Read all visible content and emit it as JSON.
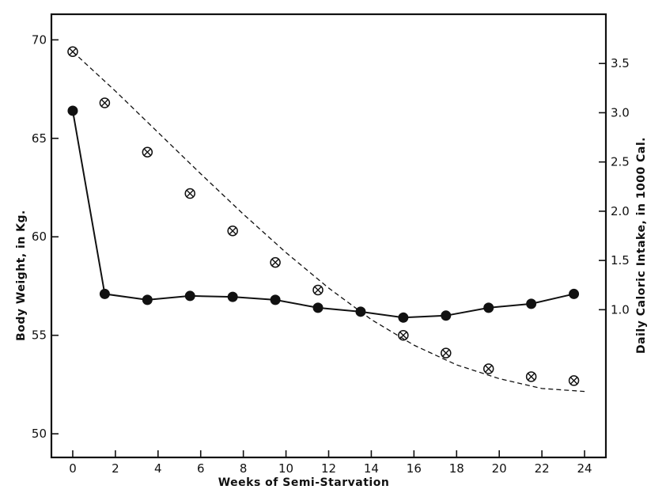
{
  "chart_data": {
    "type": "line",
    "xlabel": "Weeks of Semi-Starvation",
    "ylabel": "Body Weight, in Kg.",
    "y2label": "Daily Caloric Intake, in 1000 Cal.",
    "xlim": [
      -1.0,
      25.0
    ],
    "ylim": [
      48.8,
      71.3
    ],
    "y2lim": [
      -0.5,
      4.0
    ],
    "x_ticks": [
      0,
      2,
      4,
      6,
      8,
      10,
      12,
      14,
      16,
      18,
      20,
      22,
      24
    ],
    "y_ticks": [
      50,
      55,
      60,
      65,
      70
    ],
    "y2_ticks": [
      1.0,
      1.5,
      2.0,
      2.5,
      3.0,
      3.5
    ],
    "y2_tick_labels": [
      "1.0",
      "1.5",
      "2.0",
      "2.5",
      "3.0",
      "3.5"
    ],
    "grid": false,
    "series": [
      {
        "axis": "left",
        "style": "solid-line-filled-circles",
        "color": "#111111",
        "x": [
          0,
          1.5,
          3.5,
          5.5,
          7.5,
          9.5,
          11.5,
          13.5,
          15.5,
          17.5,
          19.5,
          21.5,
          23.5
        ],
        "y": [
          66.4,
          57.1,
          56.8,
          57.0,
          56.95,
          56.8,
          56.4,
          56.2,
          55.9,
          56.0,
          56.4,
          56.6,
          57.1
        ]
      },
      {
        "axis": "left",
        "style": "open-circle-with-x",
        "color": "#111111",
        "x": [
          0,
          1.5,
          3.5,
          5.5,
          7.5,
          9.5,
          11.5,
          15.5,
          17.5,
          19.5,
          21.5,
          23.5
        ],
        "y": [
          69.4,
          66.8,
          64.3,
          62.2,
          60.3,
          58.7,
          57.3,
          55.0,
          54.1,
          53.3,
          52.9,
          52.7
        ]
      },
      {
        "axis": "left",
        "style": "dashed-line",
        "color": "#111111",
        "x": [
          0,
          2,
          4,
          6,
          8,
          10,
          12,
          14,
          16,
          18,
          20,
          22,
          24
        ],
        "y": [
          69.4,
          67.4,
          65.3,
          63.2,
          61.15,
          59.2,
          57.4,
          55.8,
          54.5,
          53.5,
          52.8,
          52.3,
          52.15
        ]
      }
    ]
  }
}
